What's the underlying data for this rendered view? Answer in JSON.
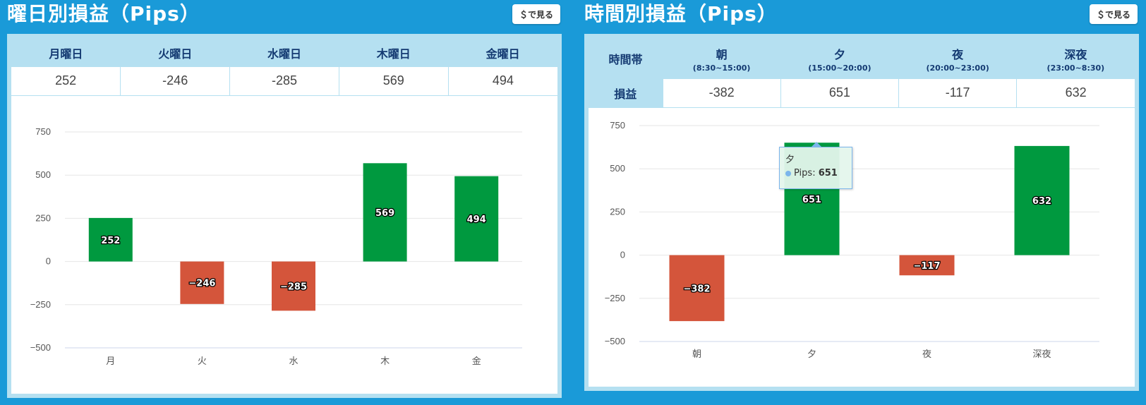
{
  "colors": {
    "background": "#1a9ad8",
    "header_fill": "#b5e0f1",
    "header_text": "#143a72",
    "positive": "#00993f",
    "negative": "#d4553b",
    "tooltip_border": "#7cb5ec"
  },
  "weekday": {
    "title": "曜日別損益（Pips）",
    "dollar_button": "＄で見る",
    "columns": [
      "月曜日",
      "火曜日",
      "水曜日",
      "木曜日",
      "金曜日"
    ],
    "values": [
      "252",
      "-246",
      "-285",
      "569",
      "494"
    ]
  },
  "timeband": {
    "title": "時間別損益（Pips）",
    "dollar_button": "＄で見る",
    "row_header_label": "時間帯",
    "row_value_label": "損益",
    "columns": [
      {
        "name": "朝",
        "range": "(8:30~15:00)"
      },
      {
        "name": "夕",
        "range": "(15:00~20:00)"
      },
      {
        "name": "夜",
        "range": "(20:00~23:00)"
      },
      {
        "name": "深夜",
        "range": "(23:00~8:30)"
      }
    ],
    "values": [
      "-382",
      "651",
      "-117",
      "632"
    ],
    "tooltip": {
      "category": "夕",
      "series": "Pips",
      "value": "651"
    }
  },
  "chart_data": [
    {
      "type": "bar",
      "categories": [
        "月",
        "火",
        "水",
        "木",
        "金"
      ],
      "values": [
        252,
        -246,
        -285,
        569,
        494
      ],
      "ylim": [
        -500,
        750
      ],
      "yticks": [
        "750",
        "500",
        "250",
        "0",
        "−250",
        "−500"
      ],
      "data_labels": [
        "252",
        "−246",
        "−285",
        "569",
        "494"
      ],
      "grid": true
    },
    {
      "type": "bar",
      "categories": [
        "朝",
        "夕",
        "夜",
        "深夜"
      ],
      "values": [
        -382,
        651,
        -117,
        632
      ],
      "ylim": [
        -500,
        750
      ],
      "yticks": [
        "750",
        "500",
        "250",
        "0",
        "−250",
        "−500"
      ],
      "data_labels": [
        "−382",
        "651",
        "−117",
        "632"
      ],
      "grid": true
    }
  ]
}
